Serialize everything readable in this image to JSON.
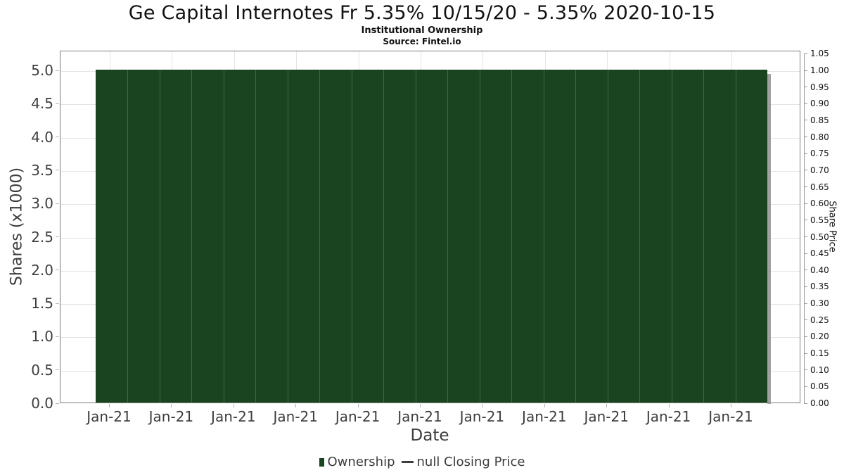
{
  "header": {
    "title": "Ge Capital Internotes Fr 5.35% 10/15/20 - 5.35% 2020-10-15",
    "subtitle": "Institutional Ownership",
    "source": "Source: Fintel.io"
  },
  "axes": {
    "left": {
      "title": "Shares (x1000)",
      "ticks": [
        "0.0",
        "0.5",
        "1.0",
        "1.5",
        "2.0",
        "2.5",
        "3.0",
        "3.5",
        "4.0",
        "4.5",
        "5.0"
      ]
    },
    "right": {
      "title": "Share Price",
      "ticks": [
        "0.00",
        "0.05",
        "0.10",
        "0.15",
        "0.20",
        "0.25",
        "0.30",
        "0.35",
        "0.40",
        "0.45",
        "0.50",
        "0.55",
        "0.60",
        "0.65",
        "0.70",
        "0.75",
        "0.80",
        "0.85",
        "0.90",
        "0.95",
        "1.00",
        "1.05"
      ]
    },
    "x": {
      "title": "Date",
      "ticks": [
        "Jan-21",
        "Jan-21",
        "Jan-21",
        "Jan-21",
        "Jan-21",
        "Jan-21",
        "Jan-21",
        "Jan-21",
        "Jan-21",
        "Jan-21",
        "Jan-21"
      ]
    }
  },
  "legend": {
    "items": [
      {
        "label": "Ownership",
        "marker": "bar-square",
        "color": "#1a4420"
      },
      {
        "label": "null Closing Price",
        "marker": "line-dash",
        "color": "#3d3d3d"
      }
    ]
  },
  "colors": {
    "bar": "#1a4420",
    "bar_shadow": "#909090",
    "grid": "#e4e4e4",
    "spine": "#7d7d7d",
    "tick": "#b3b3b3",
    "text": "#3d3d3d"
  },
  "chart_data": {
    "type": "bar",
    "title": "Ge Capital Internotes Fr 5.35% 10/15/20 - 5.35% 2020-10-15",
    "subtitle": "Institutional Ownership",
    "source": "Source: Fintel.io",
    "xlabel": "Date",
    "ylabel_left": "Shares (x1000)",
    "ylabel_right": "Share Price",
    "ylim_left": [
      0.0,
      5.3
    ],
    "ylim_right": [
      0.0,
      1.05
    ],
    "x_ticklabels": [
      "Jan-21",
      "Jan-21",
      "Jan-21",
      "Jan-21",
      "Jan-21",
      "Jan-21",
      "Jan-21",
      "Jan-21",
      "Jan-21",
      "Jan-21",
      "Jan-21"
    ],
    "grid": true,
    "legend_position": "bottom",
    "series": [
      {
        "name": "Ownership",
        "type": "bar",
        "color": "#1a4420",
        "units": "shares x1000",
        "values": [
          5.0,
          5.0,
          5.0,
          5.0,
          5.0,
          5.0,
          5.0,
          5.0,
          5.0,
          5.0,
          5.0,
          5.0,
          5.0,
          5.0,
          5.0,
          5.0,
          5.0,
          5.0,
          5.0,
          5.0,
          5.0
        ]
      },
      {
        "name": "null Closing Price",
        "type": "line",
        "color": "#3d3d3d",
        "values": []
      }
    ]
  }
}
